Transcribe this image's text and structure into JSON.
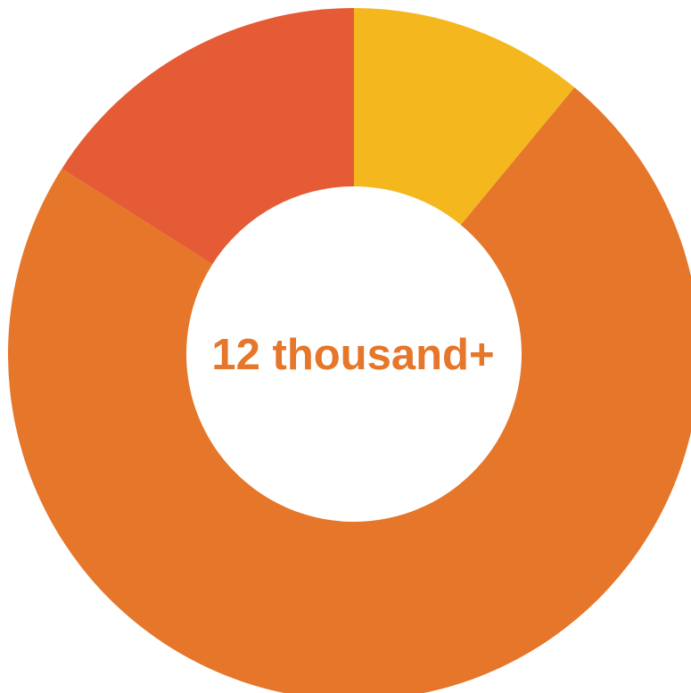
{
  "chart_data": {
    "type": "pie",
    "variant": "donut",
    "center_label": "12 thousand+",
    "slices": [
      {
        "value": 11,
        "color": "#F5B71E"
      },
      {
        "value": 73,
        "color": "#E5762A"
      },
      {
        "value": 16,
        "color": "#E55B35"
      }
    ],
    "start_angle": "top",
    "direction": "clockwise",
    "legend": "none"
  }
}
